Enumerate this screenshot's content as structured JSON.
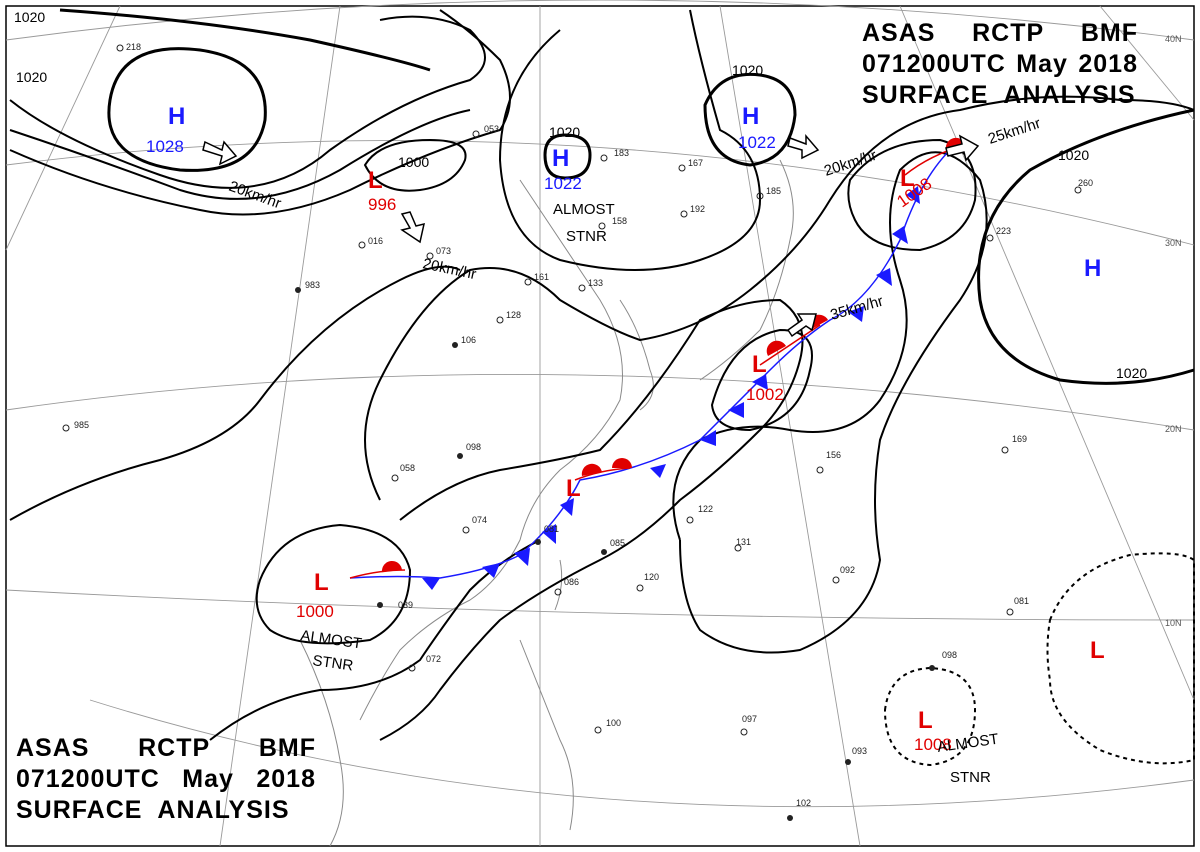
{
  "header": {
    "line1": [
      "ASAS",
      "RCTP",
      "BMF"
    ],
    "line2": [
      "071200UTC",
      "May",
      "2018"
    ],
    "line3": "SURFACE  ANALYSIS"
  },
  "footer": {
    "line1": [
      "ASAS",
      "RCTP",
      "BMF"
    ],
    "line2": [
      "071200UTC",
      "May",
      "2018"
    ],
    "line3": "SURFACE  ANALYSIS"
  },
  "colors": {
    "high": "#1a1aff",
    "low": "#e00000",
    "isobar": "#000000",
    "grid": "#9a9a9a",
    "coast": "#8a8a8a"
  },
  "latitude_labels": [
    {
      "id": "lat-40",
      "text": "40N"
    },
    {
      "id": "lat-30",
      "text": "30N"
    },
    {
      "id": "lat-20",
      "text": "20N"
    },
    {
      "id": "lat-10",
      "text": "10N"
    }
  ],
  "isobar_labels": [
    {
      "id": "iso-1020-nw",
      "text": "1020"
    },
    {
      "id": "iso-1020-w",
      "text": "1020"
    },
    {
      "id": "iso-1020-c",
      "text": "1020"
    },
    {
      "id": "iso-1020-ne",
      "text": "1020"
    },
    {
      "id": "iso-1020-e1",
      "text": "1020"
    },
    {
      "id": "iso-1020-e2",
      "text": "1020"
    },
    {
      "id": "iso-1000",
      "text": "1000"
    }
  ],
  "pressure_systems": [
    {
      "id": "high-nw",
      "type": "H",
      "pressure": "1028",
      "color": "#1a1aff"
    },
    {
      "id": "high-c",
      "type": "H",
      "pressure": "1022",
      "color": "#1a1aff"
    },
    {
      "id": "high-ne",
      "type": "H",
      "pressure": "1022",
      "color": "#1a1aff"
    },
    {
      "id": "high-e",
      "type": "H",
      "pressure": "",
      "color": "#1a1aff"
    },
    {
      "id": "low-n",
      "type": "L",
      "pressure": "996",
      "color": "#e00000"
    },
    {
      "id": "low-ne",
      "type": "L",
      "pressure": "1008",
      "color": "#e00000"
    },
    {
      "id": "low-japan",
      "type": "L",
      "pressure": "1002",
      "color": "#e00000"
    },
    {
      "id": "low-front",
      "type": "L",
      "pressure": "",
      "color": "#e00000"
    },
    {
      "id": "low-sw",
      "type": "L",
      "pressure": "1000",
      "color": "#e00000"
    },
    {
      "id": "low-s",
      "type": "L",
      "pressure": "1008",
      "color": "#e00000"
    },
    {
      "id": "low-se",
      "type": "L",
      "pressure": "",
      "color": "#e00000"
    }
  ],
  "motion_labels": [
    {
      "id": "motion-nw",
      "text": "20km/hr"
    },
    {
      "id": "motion-n",
      "text": "20km/hr"
    },
    {
      "id": "motion-ne-high",
      "text": "20km/hr"
    },
    {
      "id": "motion-ne-low",
      "text": "25km/hr"
    },
    {
      "id": "motion-japan",
      "text": "35km/hr"
    }
  ],
  "stationary_labels": [
    {
      "id": "stnr-c",
      "line1": "ALMOST",
      "line2": "STNR"
    },
    {
      "id": "stnr-sw",
      "line1": "ALMOST",
      "line2": "STNR"
    },
    {
      "id": "stnr-s",
      "line1": "ALMOST",
      "line2": "STNR"
    }
  ],
  "station_plots": [
    "218",
    "983",
    "016",
    "073",
    "128",
    "106",
    "161",
    "133",
    "156",
    "169",
    "098",
    "058",
    "074",
    "081",
    "086",
    "120",
    "131",
    "092",
    "097",
    "093",
    "102",
    "100",
    "072",
    "039",
    "985",
    "260",
    "223",
    "183",
    "167",
    "192",
    "185",
    "053",
    "158",
    "122",
    "085",
    "081",
    "098"
  ]
}
